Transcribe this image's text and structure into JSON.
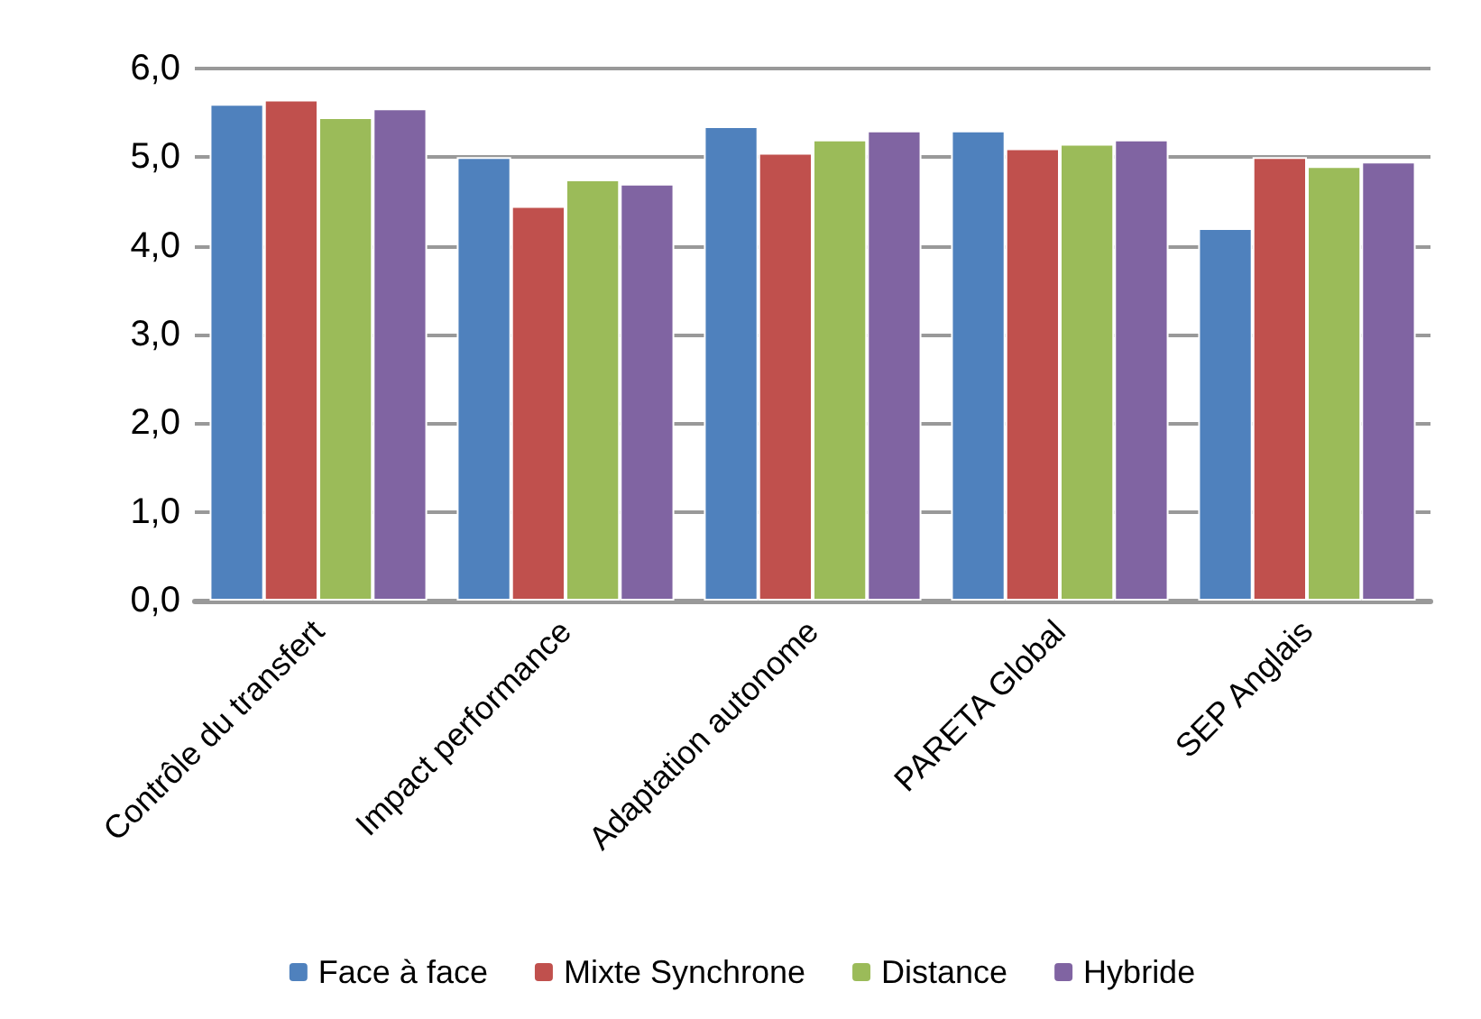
{
  "chart_data": {
    "type": "bar",
    "categories": [
      "Contrôle du transfert",
      "Impact performance",
      "Adaptation autonome",
      "PARETA Global",
      "SEP Anglais"
    ],
    "series": [
      {
        "name": "Face à face",
        "color": "#4f81bd",
        "values": [
          5.6,
          5.0,
          5.35,
          5.3,
          4.2
        ]
      },
      {
        "name": "Mixte Synchrone",
        "color": "#c0504d",
        "values": [
          5.65,
          4.45,
          5.05,
          5.1,
          5.0
        ]
      },
      {
        "name": "Distance",
        "color": "#9bbb59",
        "values": [
          5.45,
          4.75,
          5.2,
          5.15,
          4.9
        ]
      },
      {
        "name": "Hybride",
        "color": "#8064a2",
        "values": [
          5.55,
          4.7,
          5.3,
          5.2,
          4.95
        ]
      }
    ],
    "ylim": [
      0,
      6
    ],
    "yticks": [
      {
        "value": 0,
        "label": "0,0"
      },
      {
        "value": 1,
        "label": "1,0"
      },
      {
        "value": 2,
        "label": "2,0"
      },
      {
        "value": 3,
        "label": "3,0"
      },
      {
        "value": 4,
        "label": "4,0"
      },
      {
        "value": 5,
        "label": "5,0"
      },
      {
        "value": 6,
        "label": "6,0"
      }
    ],
    "grid": "y",
    "legend": "bottom"
  }
}
